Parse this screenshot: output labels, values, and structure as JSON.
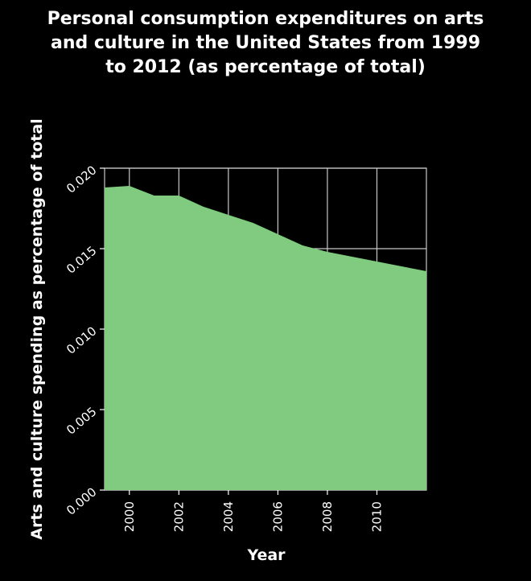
{
  "chart_data": {
    "type": "area",
    "title": "Personal consumption expenditures on arts and culture in the United States from 1999 to 2012 (as percentage of total)",
    "title_lines": [
      "Personal consumption expenditures on arts",
      "and culture in the United States from 1999",
      "to 2012 (as percentage of total)"
    ],
    "xlabel": "Year",
    "ylabel": "Arts and culture spending as percentage of total",
    "x": [
      1999,
      2000,
      2001,
      2002,
      2003,
      2004,
      2005,
      2006,
      2007,
      2008,
      2009,
      2010,
      2011,
      2012
    ],
    "values": [
      0.0188,
      0.0189,
      0.0183,
      0.0183,
      0.0176,
      0.0171,
      0.0166,
      0.0159,
      0.0152,
      0.0148,
      0.0145,
      0.0142,
      0.0139,
      0.0136
    ],
    "xlim": [
      1999,
      2012
    ],
    "ylim": [
      0,
      0.02
    ],
    "xticks": [
      2000,
      2002,
      2004,
      2006,
      2008,
      2010
    ],
    "yticks": [
      "0.000",
      "0.005",
      "0.010",
      "0.015",
      "0.020"
    ],
    "grid": true,
    "colors": {
      "fill": "#80cb80",
      "background": "#000000",
      "grid": "#c8c8c8",
      "text": "#ffffff"
    }
  }
}
